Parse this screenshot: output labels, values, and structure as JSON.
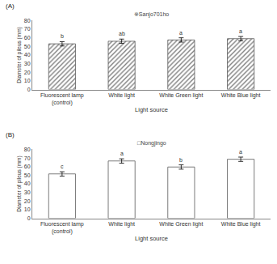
{
  "chart_data": [
    {
      "type": "bar",
      "panel": "(A)",
      "title": "※Sanjo701ho",
      "x_label": "Light source",
      "y_label": "Diameter of pileus (mm)",
      "categories": [
        "Fluorescent lamp\n(control)",
        "White light",
        "White Green light",
        "White Blue light"
      ],
      "values": [
        53,
        56,
        57.5,
        59
      ],
      "errors": [
        2.5,
        2.5,
        2.5,
        2.5
      ],
      "letters": [
        "b",
        "ab",
        "a",
        "a"
      ],
      "color": "#7f7f7f",
      "marker": "hatched",
      "ylim": [
        0,
        80
      ],
      "yticks": [
        0,
        10,
        20,
        30,
        40,
        50,
        60,
        70,
        80
      ],
      "grid": false
    },
    {
      "type": "bar",
      "panel": "(B)",
      "title": "□Nongjingo",
      "x_label": "Light source",
      "y_label": "Diameter of pileus (mm)",
      "categories": [
        "Fluorescent lamp\n(control)",
        "White light",
        "White Green light",
        "White Blue light"
      ],
      "values": [
        51.5,
        66.5,
        59.5,
        68.5
      ],
      "errors": [
        2.5,
        2.5,
        2.5,
        2.5
      ],
      "letters": [
        "c",
        "a",
        "b",
        "a"
      ],
      "color": "#ffffff",
      "marker": "plain",
      "ylim": [
        0,
        80
      ],
      "yticks": [
        0,
        10,
        20,
        30,
        40,
        50,
        60,
        70,
        80
      ],
      "grid": false
    }
  ]
}
